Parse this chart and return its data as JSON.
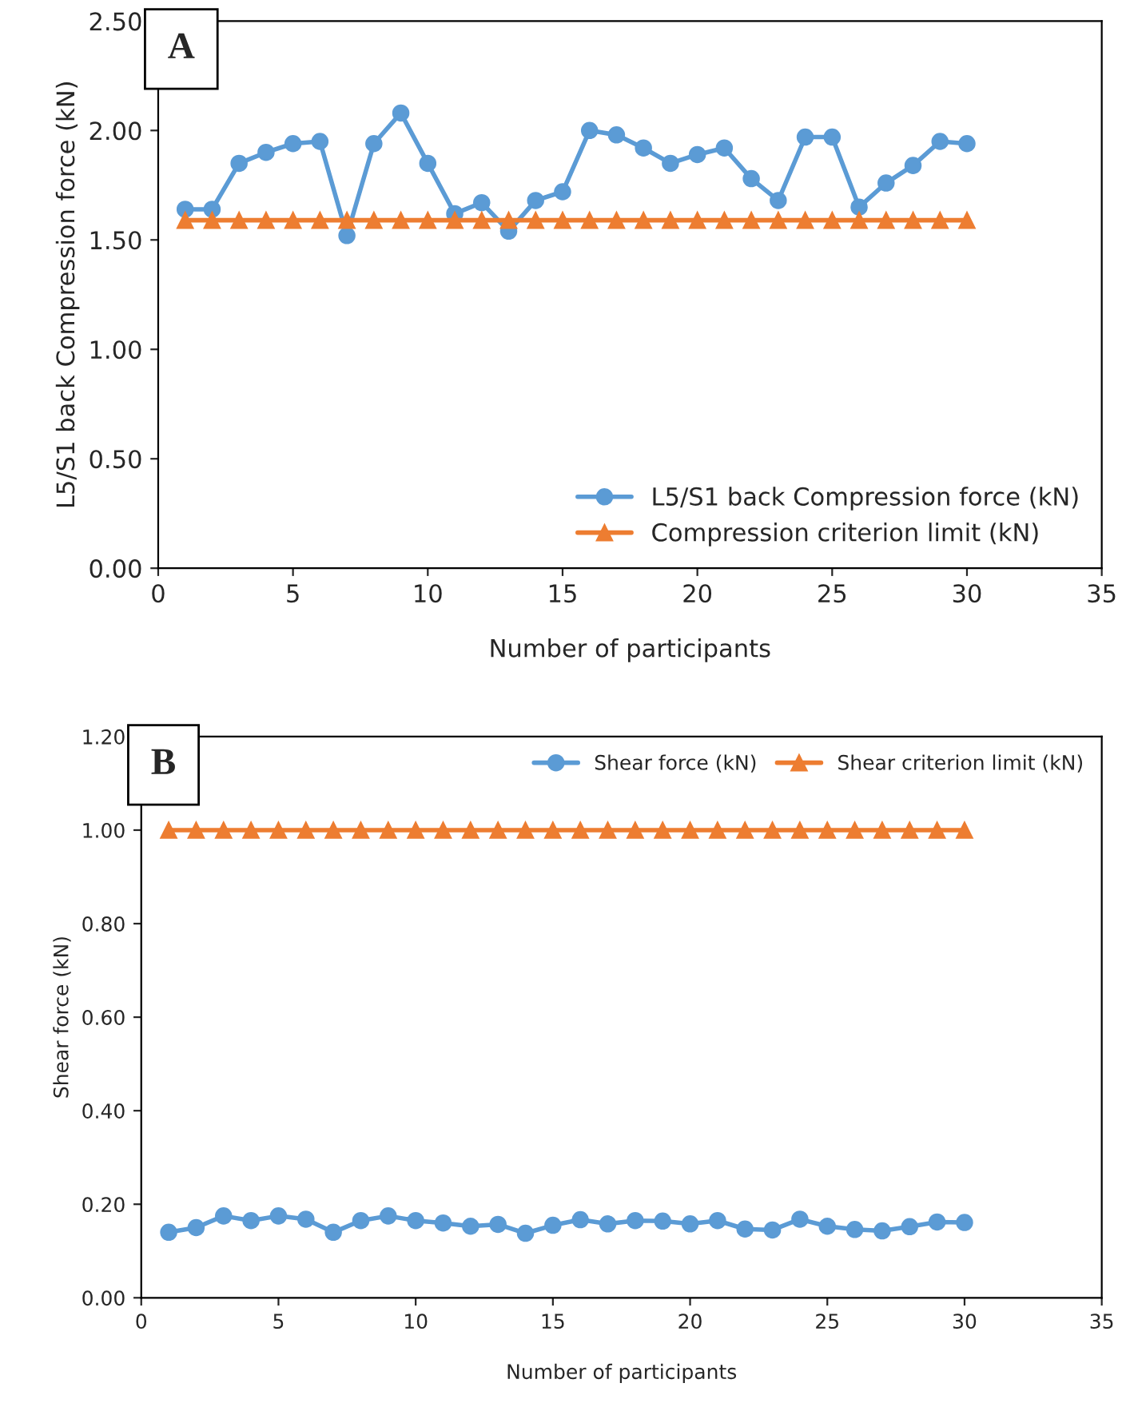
{
  "chart_data": [
    {
      "type": "line",
      "xlabel": "Number of participants",
      "ylabel": "L5/S1 back Compression force (kN)",
      "annotations": [
        "A"
      ],
      "x": [
        1,
        2,
        3,
        4,
        5,
        6,
        7,
        8,
        9,
        10,
        11,
        12,
        13,
        14,
        15,
        16,
        17,
        18,
        19,
        20,
        21,
        22,
        23,
        24,
        25,
        26,
        27,
        28,
        29,
        30
      ],
      "series": [
        {
          "name": "L5/S1 back Compression force (kN)",
          "color": "#5b9bd5",
          "marker": "circle",
          "values": [
            1.64,
            1.64,
            1.85,
            1.9,
            1.94,
            1.95,
            1.52,
            1.94,
            2.08,
            1.85,
            1.62,
            1.67,
            1.54,
            1.68,
            1.72,
            2.0,
            1.98,
            1.92,
            1.85,
            1.89,
            1.92,
            1.78,
            1.68,
            1.97,
            1.97,
            1.65,
            1.76,
            1.84,
            1.95,
            1.94
          ]
        },
        {
          "name": "Compression criterion limit (kN)",
          "color": "#ed7d31",
          "marker": "triangle",
          "values": [
            1.59,
            1.59,
            1.59,
            1.59,
            1.59,
            1.59,
            1.59,
            1.59,
            1.59,
            1.59,
            1.59,
            1.59,
            1.59,
            1.59,
            1.59,
            1.59,
            1.59,
            1.59,
            1.59,
            1.59,
            1.59,
            1.59,
            1.59,
            1.59,
            1.59,
            1.59,
            1.59,
            1.59,
            1.59,
            1.59
          ]
        }
      ],
      "xlim": [
        0,
        35
      ],
      "xticks": [
        0,
        5,
        10,
        15,
        20,
        25,
        30,
        35
      ],
      "ylim": [
        0,
        2.5
      ],
      "yticks": [
        {
          "value": 0,
          "label": "0.00"
        },
        {
          "value": 0.5,
          "label": "0.50"
        },
        {
          "value": 1,
          "label": "1.00"
        },
        {
          "value": 1.5,
          "label": "1.50"
        },
        {
          "value": 2,
          "label": "2.00"
        },
        {
          "value": 2.5,
          "label": "2.50"
        }
      ],
      "legend": "bottom right",
      "line_style": "solid"
    },
    {
      "type": "line",
      "xlabel": "Number of participants",
      "ylabel": "Shear force (kN)",
      "annotations": [
        "B"
      ],
      "x": [
        1,
        2,
        3,
        4,
        5,
        6,
        7,
        8,
        9,
        10,
        11,
        12,
        13,
        14,
        15,
        16,
        17,
        18,
        19,
        20,
        21,
        22,
        23,
        24,
        25,
        26,
        27,
        28,
        29,
        30
      ],
      "series": [
        {
          "name": "Shear force (kN)",
          "color": "#5b9bd5",
          "marker": "circle",
          "values": [
            0.14,
            0.15,
            0.175,
            0.165,
            0.175,
            0.168,
            0.14,
            0.165,
            0.175,
            0.165,
            0.16,
            0.153,
            0.157,
            0.138,
            0.155,
            0.167,
            0.158,
            0.165,
            0.164,
            0.158,
            0.165,
            0.147,
            0.145,
            0.168,
            0.153,
            0.146,
            0.143,
            0.152,
            0.162,
            0.161
          ]
        },
        {
          "name": "Shear criterion limit (kN)",
          "color": "#ed7d31",
          "marker": "triangle",
          "values": [
            1,
            1,
            1,
            1,
            1,
            1,
            1,
            1,
            1,
            1,
            1,
            1,
            1,
            1,
            1,
            1,
            1,
            1,
            1,
            1,
            1,
            1,
            1,
            1,
            1,
            1,
            1,
            1,
            1,
            1
          ]
        }
      ],
      "xlim": [
        0,
        35
      ],
      "xticks": [
        0,
        5,
        10,
        15,
        20,
        25,
        30,
        35
      ],
      "ylim": [
        0,
        1.2
      ],
      "yticks": [
        {
          "value": 0,
          "label": "0.00"
        },
        {
          "value": 0.2,
          "label": "0.20"
        },
        {
          "value": 0.4,
          "label": "0.40"
        },
        {
          "value": 0.6,
          "label": "0.60"
        },
        {
          "value": 0.8,
          "label": "0.80"
        },
        {
          "value": 1,
          "label": "1.00"
        },
        {
          "value": 1.2,
          "label": "1.20"
        }
      ],
      "legend": "top right",
      "line_style": "solid"
    }
  ]
}
